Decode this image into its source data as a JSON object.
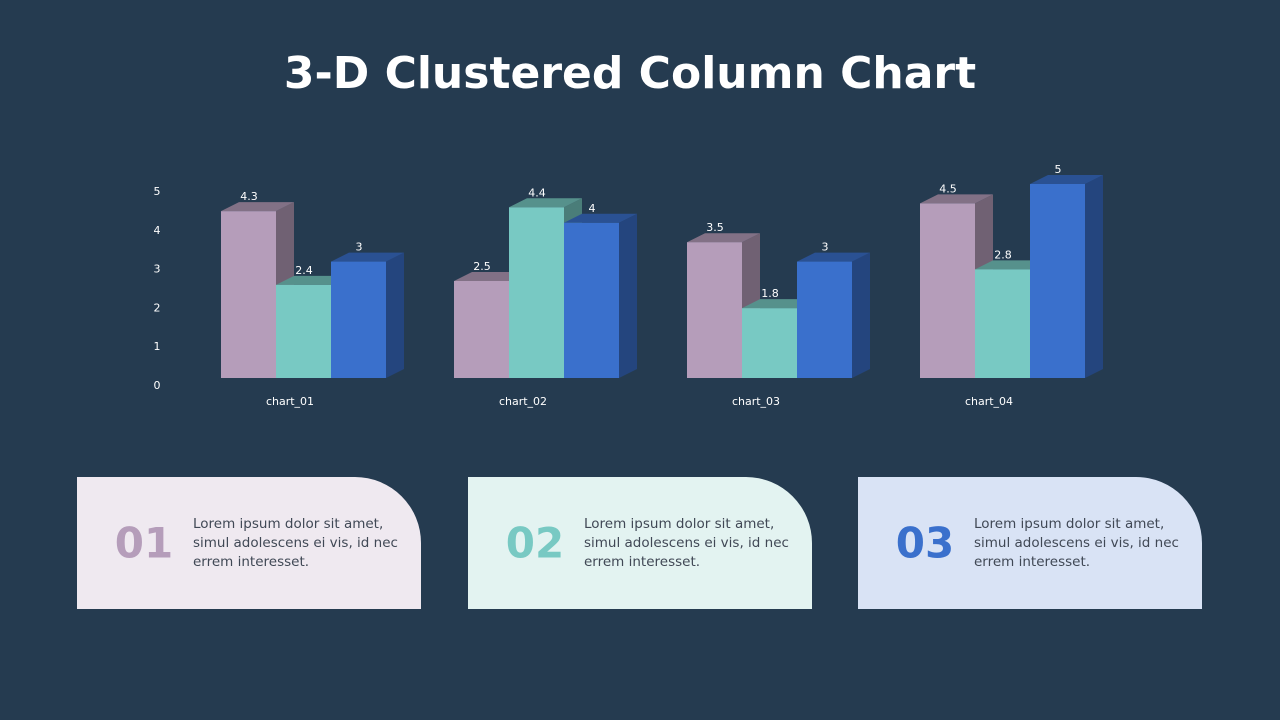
{
  "chart_data": {
    "type": "bar3d",
    "title": "3-D Clustered Column Chart",
    "categories": [
      "chart_01",
      "chart_02",
      "chart_03",
      "chart_04"
    ],
    "series": [
      {
        "color": "#b59dba",
        "values": [
          4.3,
          2.5,
          3.5,
          4.5
        ]
      },
      {
        "color": "#78c9c3",
        "values": [
          2.4,
          4.4,
          1.8,
          2.8
        ]
      },
      {
        "color": "#3a70cc",
        "values": [
          3,
          4,
          3,
          5
        ]
      }
    ],
    "ylim": [
      0,
      5
    ],
    "yticks": [
      0,
      1,
      2,
      3,
      4,
      5
    ]
  },
  "cards": [
    {
      "number": "01",
      "color": "#b59dba",
      "background": "#efe9f0",
      "lines": [
        "Lorem ipsum dolor sit amet,",
        "simul adolescens ei vis, id nec",
        "errem interesset."
      ]
    },
    {
      "number": "02",
      "color": "#78c9c3",
      "background": "#e3f3f1",
      "lines": [
        "Lorem ipsum dolor sit amet,",
        "simul adolescens ei vis, id nec",
        "errem interesset."
      ]
    },
    {
      "number": "03",
      "color": "#3a70cc",
      "background": "#d9e3f5",
      "lines": [
        "Lorem ipsum dolor sit amet,",
        "simul adolescens ei vis, id nec",
        "errem interesset."
      ]
    }
  ]
}
